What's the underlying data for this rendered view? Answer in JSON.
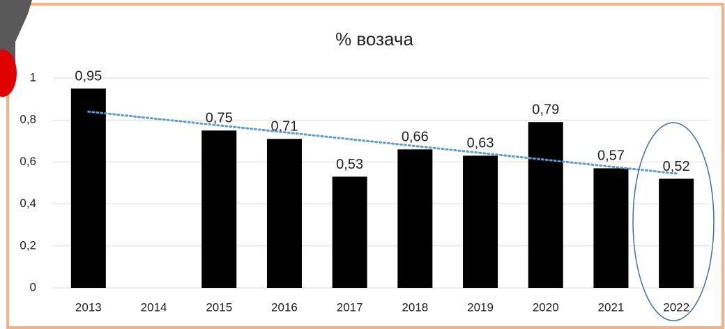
{
  "chart_data": {
    "type": "bar",
    "title": "% возача",
    "categories": [
      "2013",
      "2014",
      "2015",
      "2016",
      "2017",
      "2018",
      "2019",
      "2020",
      "2021",
      "2022"
    ],
    "values": [
      0.95,
      null,
      0.75,
      0.71,
      0.53,
      0.66,
      0.63,
      0.79,
      0.57,
      0.52
    ],
    "value_labels": [
      "0,95",
      null,
      "0,75",
      "0,71",
      "0,53",
      "0,66",
      "0,63",
      "0,79",
      "0,57",
      "0,52"
    ],
    "color": "#000000",
    "ylim": [
      0,
      1
    ],
    "yticks": [
      0,
      {
        "value": 0.2,
        "label": "0,2"
      },
      {
        "value": 0.4,
        "label": "0,4"
      },
      {
        "value": 0.6,
        "label": "0,6"
      },
      {
        "value": 0.8,
        "label": "0,8"
      },
      1
    ],
    "grid": true,
    "trendline": {
      "color": "#5b9bd5",
      "start": 0.84,
      "end": 0.545
    }
  }
}
